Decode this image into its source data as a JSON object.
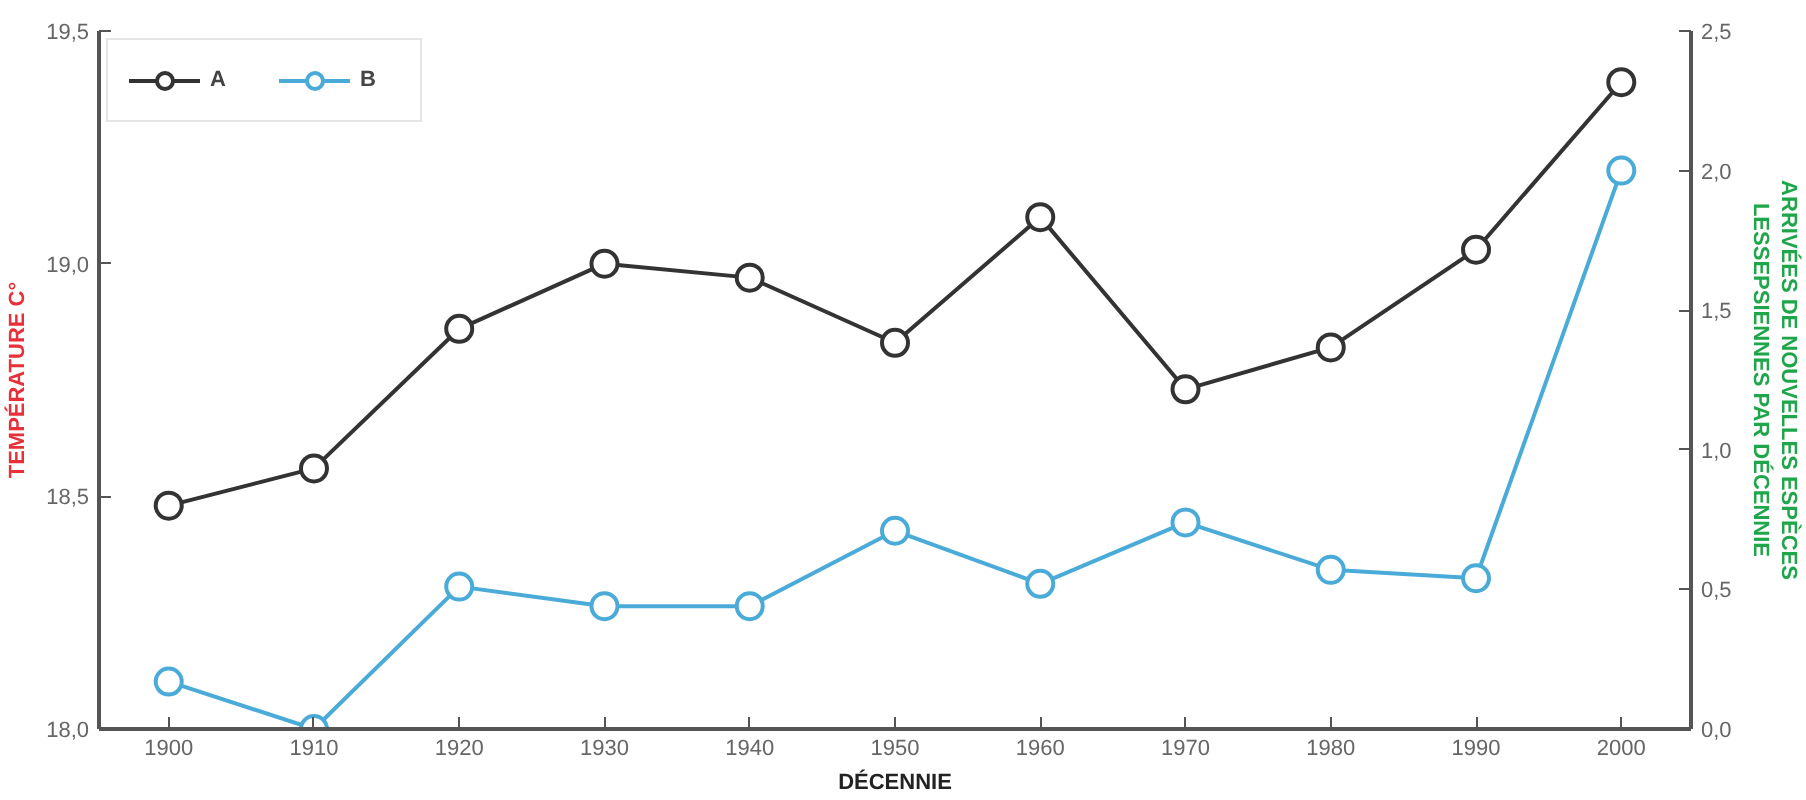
{
  "chart_data": {
    "type": "line",
    "xlabel": "DÉCENNIE",
    "ylabel": "TEMPÉRATURE C°",
    "y2label": "ARRIVÉES DE NOUVELLES ESPÈCES\nLESSEPSIENNES PAR DÉCENNIE",
    "x": [
      1900,
      1910,
      1920,
      1930,
      1940,
      1950,
      1960,
      1970,
      1980,
      1990,
      2000
    ],
    "series": [
      {
        "name": "A",
        "color": "#333333",
        "values": [
          18.48,
          18.56,
          18.86,
          19.0,
          18.97,
          18.83,
          19.1,
          18.73,
          18.82,
          19.03,
          19.39
        ]
      },
      {
        "name": "B",
        "color": "#4aabd8",
        "axis": "y2",
        "values": [
          0.17,
          0.0,
          0.51,
          0.44,
          0.44,
          0.71,
          0.52,
          0.74,
          0.57,
          0.54,
          2.0
        ]
      }
    ],
    "xlim": [
      1895.2,
      2004.8
    ],
    "xticks": [
      1900,
      1910,
      1920,
      1930,
      1940,
      1950,
      1960,
      1970,
      1980,
      1990,
      2000
    ],
    "ylim": [
      18.0,
      19.5
    ],
    "yticks": [
      {
        "value": 18.0,
        "label": "18,0"
      },
      {
        "value": 18.5,
        "label": "18,5"
      },
      {
        "value": 19.0,
        "label": "19,0"
      },
      {
        "value": 19.5,
        "label": "19,5"
      }
    ],
    "y2lim": [
      0.0,
      2.5
    ],
    "y2ticks": [
      {
        "value": 0.0,
        "label": "0,0"
      },
      {
        "value": 0.5,
        "label": "0,5"
      },
      {
        "value": 1.0,
        "label": "1,0"
      },
      {
        "value": 1.5,
        "label": "1,5"
      },
      {
        "value": 2.0,
        "label": "2,0"
      },
      {
        "value": 2.5,
        "label": "2,5"
      }
    ],
    "legend": "top left",
    "marker": "circle",
    "line_style": "solid",
    "grid": false
  }
}
